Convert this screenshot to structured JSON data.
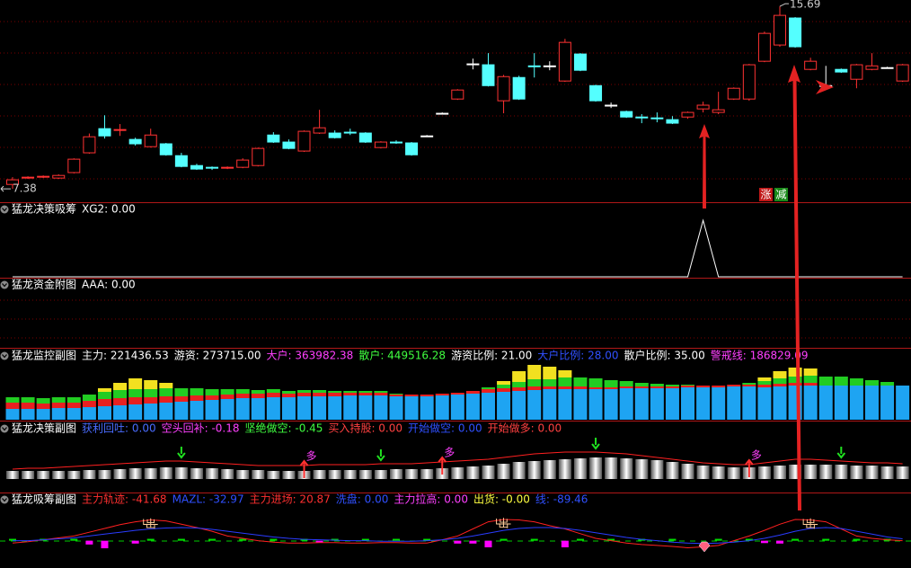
{
  "chart_data": [
    {
      "type": "candlestick",
      "ylim": [
        6.77,
        15.98
      ],
      "up_color": "#ff3232",
      "down_color": "#54ffff",
      "max_label": 15.69,
      "min_label": 7.38,
      "badges": [
        "涨",
        "减"
      ],
      "ohlc": [
        [
          7.58,
          7.91,
          7.38,
          7.79
        ],
        [
          7.87,
          7.95,
          7.83,
          7.91
        ],
        [
          7.91,
          7.99,
          7.87,
          7.95
        ],
        [
          7.87,
          8.04,
          7.83,
          7.99
        ],
        [
          8.12,
          8.77,
          8.08,
          8.73
        ],
        [
          9.02,
          9.9,
          8.98,
          9.75
        ],
        [
          10.12,
          10.73,
          9.67,
          9.79
        ],
        [
          10.04,
          10.33,
          9.79,
          10.08
        ],
        [
          9.63,
          9.71,
          9.35,
          9.43
        ],
        [
          9.3,
          10.12,
          9.26,
          9.83
        ],
        [
          9.43,
          9.47,
          8.89,
          8.93
        ],
        [
          8.89,
          9.02,
          8.36,
          8.4
        ],
        [
          8.44,
          8.52,
          8.24,
          8.28
        ],
        [
          8.36,
          8.4,
          8.24,
          8.32
        ],
        [
          8.32,
          8.4,
          8.28,
          8.36
        ],
        [
          8.36,
          8.77,
          8.32,
          8.69
        ],
        [
          8.44,
          9.26,
          8.4,
          9.22
        ],
        [
          9.83,
          9.96,
          9.47,
          9.51
        ],
        [
          9.51,
          9.63,
          9.18,
          9.22
        ],
        [
          9.1,
          10.04,
          9.06,
          10.0
        ],
        [
          9.92,
          10.98,
          9.88,
          10.16
        ],
        [
          9.92,
          10.04,
          9.67,
          9.71
        ],
        [
          9.96,
          10.12,
          9.83,
          9.92
        ],
        [
          9.92,
          9.96,
          9.47,
          9.51
        ],
        [
          9.26,
          9.55,
          9.22,
          9.51
        ],
        [
          9.51,
          9.59,
          9.43,
          9.47
        ],
        [
          9.47,
          9.51,
          8.89,
          8.93
        ],
        [
          9.79,
          9.83,
          9.75,
          9.79
        ],
        [
          10.82,
          10.86,
          10.78,
          10.82
        ],
        [
          11.47,
          11.92,
          11.43,
          11.88
        ],
        [
          13.07,
          13.31,
          12.82,
          13.07
        ],
        [
          13.03,
          13.56,
          12.04,
          12.08
        ],
        [
          11.39,
          12.57,
          10.82,
          12.49
        ],
        [
          12.45,
          12.53,
          11.43,
          11.47
        ],
        [
          12.98,
          13.56,
          12.45,
          12.94
        ],
        [
          12.98,
          13.19,
          12.78,
          12.98
        ],
        [
          12.29,
          14.21,
          12.25,
          14.05
        ],
        [
          13.52,
          13.56,
          12.74,
          12.78
        ],
        [
          12.08,
          12.12,
          11.35,
          11.39
        ],
        [
          11.19,
          11.31,
          11.06,
          11.19
        ],
        [
          10.9,
          10.94,
          10.61,
          10.65
        ],
        [
          10.65,
          10.78,
          10.37,
          10.61
        ],
        [
          10.61,
          10.86,
          10.41,
          10.57
        ],
        [
          10.53,
          10.69,
          10.33,
          10.37
        ],
        [
          10.65,
          10.9,
          10.57,
          10.86
        ],
        [
          11.02,
          11.35,
          10.86,
          11.19
        ],
        [
          10.86,
          11.8,
          10.78,
          10.98
        ],
        [
          11.47,
          12.0,
          11.43,
          11.96
        ],
        [
          11.47,
          13.07,
          11.39,
          13.03
        ],
        [
          13.19,
          14.54,
          13.15,
          14.46
        ],
        [
          13.93,
          15.69,
          13.85,
          15.28
        ],
        [
          15.16,
          15.2,
          13.81,
          13.85
        ],
        [
          12.82,
          13.35,
          12.78,
          13.19
        ],
        [
          12.08,
          12.98,
          11.96,
          12.08
        ],
        [
          12.82,
          12.86,
          12.66,
          12.7
        ],
        [
          12.37,
          13.07,
          11.96,
          13.03
        ],
        [
          12.82,
          13.56,
          12.78,
          12.98
        ],
        [
          12.9,
          12.94,
          12.86,
          12.9
        ],
        [
          12.29,
          13.07,
          12.25,
          13.03
        ]
      ]
    },
    {
      "type": "signal",
      "header": [
        {
          "text": "猛龙决策吸筹",
          "color": "#ffffff"
        },
        {
          "text": "XG2: 0.00",
          "color": "#ffffff"
        }
      ],
      "ylim": [
        0,
        1.05
      ],
      "color": "#ffffff",
      "values": [
        0,
        0,
        0,
        0,
        0,
        0,
        0,
        0,
        0,
        0,
        0,
        0,
        0,
        0,
        0,
        0,
        0,
        0,
        0,
        0,
        0,
        0,
        0,
        0,
        0,
        0,
        0,
        0,
        0,
        0,
        0,
        0,
        0,
        0,
        0,
        0,
        0,
        0,
        0,
        0,
        0,
        0,
        0,
        0,
        0,
        1,
        0,
        0,
        0,
        0,
        0,
        0,
        0,
        0,
        0,
        0,
        0,
        0,
        0
      ]
    },
    {
      "type": "blank",
      "header": [
        {
          "text": "猛龙资金附图",
          "color": "#ffffff"
        },
        {
          "text": "AAA: 0.00",
          "color": "#ffffff"
        }
      ]
    },
    {
      "type": "stacked-bar",
      "ylim": [
        0,
        62
      ],
      "header": [
        {
          "text": "猛龙监控副图",
          "color": "#ffffff"
        },
        {
          "text": "主力: 221436.53",
          "color": "#ffffff"
        },
        {
          "text": "游资: 273715.00",
          "color": "#ffffff"
        },
        {
          "text": "大户: 363982.38",
          "color": "#ff40ff"
        },
        {
          "text": "散户: 449516.28",
          "color": "#40ff40"
        },
        {
          "text": "游资比例: 21.00",
          "color": "#ffffff"
        },
        {
          "text": "大户比例: 28.00",
          "color": "#3050ff"
        },
        {
          "text": "散户比例: 35.00",
          "color": "#ffffff"
        },
        {
          "text": "警戒线: 186829.09",
          "color": "#ff40ff"
        }
      ],
      "series": [
        {
          "color": "#1ea4f2",
          "values": [
            12,
            12,
            12,
            13,
            13,
            14,
            15,
            16,
            17,
            18,
            19,
            20,
            21,
            22,
            23,
            24,
            24,
            25,
            25,
            26,
            26,
            26,
            27,
            27,
            27,
            26,
            26,
            26,
            27,
            28,
            29,
            30,
            31,
            32,
            33,
            34,
            34,
            34,
            34,
            34,
            35,
            35,
            35,
            35,
            36,
            36,
            36,
            37,
            37,
            36,
            37,
            38,
            38,
            38,
            38,
            38,
            38,
            38,
            38
          ]
        },
        {
          "color": "#e82020",
          "values": [
            7,
            7,
            6,
            6,
            6,
            7,
            8,
            8,
            8,
            7,
            7,
            6,
            6,
            5,
            5,
            5,
            5,
            5,
            4,
            4,
            4,
            4,
            3,
            3,
            3,
            2,
            2,
            2,
            2,
            2,
            3,
            4,
            4,
            4,
            4,
            3,
            3,
            3,
            2,
            2,
            2,
            2,
            2,
            2,
            2,
            2,
            2,
            2,
            2,
            3,
            3,
            3,
            3,
            0,
            0,
            0,
            0,
            0,
            0
          ]
        },
        {
          "color": "#22cc22",
          "values": [
            6,
            6,
            6,
            6,
            6,
            7,
            8,
            9,
            9,
            9,
            9,
            9,
            8,
            7,
            6,
            5,
            4,
            4,
            3,
            3,
            3,
            2,
            2,
            2,
            2,
            1,
            0,
            0,
            0,
            0,
            0,
            2,
            4,
            6,
            8,
            8,
            10,
            10,
            10,
            8,
            6,
            4,
            3,
            2,
            1,
            0,
            0,
            0,
            2,
            4,
            6,
            7,
            8,
            10,
            10,
            8,
            6,
            4,
            0
          ]
        },
        {
          "color": "#f2e020",
          "values": [
            0,
            0,
            0,
            0,
            0,
            0,
            4,
            8,
            12,
            10,
            6,
            0,
            0,
            0,
            0,
            0,
            0,
            0,
            0,
            0,
            0,
            0,
            0,
            0,
            0,
            0,
            0,
            0,
            0,
            0,
            0,
            0,
            4,
            12,
            16,
            14,
            8,
            0,
            0,
            0,
            0,
            0,
            0,
            0,
            0,
            0,
            0,
            0,
            0,
            4,
            8,
            10,
            8,
            0,
            0,
            0,
            0,
            0,
            0
          ]
        }
      ]
    },
    {
      "type": "decision",
      "ylim": [
        0,
        46
      ],
      "header": [
        {
          "text": "猛龙决策副图",
          "color": "#ffffff"
        },
        {
          "text": "获利回吐: 0.00",
          "color": "#4a6cff"
        },
        {
          "text": "空头回补: -0.18",
          "color": "#ff40ff"
        },
        {
          "text": "坚绝做空: -0.45",
          "color": "#40ff40"
        },
        {
          "text": "买入持股: 0.00",
          "color": "#ff4040"
        },
        {
          "text": "开始做空: 0.00",
          "color": "#3050ff"
        },
        {
          "text": "开始做多: 0.00",
          "color": "#ff4040"
        }
      ],
      "values": [
        9,
        9,
        9,
        9,
        9,
        10,
        10,
        11,
        12,
        12,
        13,
        13,
        12,
        12,
        11,
        10,
        10,
        9,
        9,
        9,
        10,
        10,
        10,
        10,
        10,
        11,
        11,
        11,
        12,
        13,
        14,
        15,
        17,
        19,
        20,
        21,
        22,
        23,
        24,
        24,
        23,
        22,
        21,
        19,
        17,
        15,
        14,
        13,
        13,
        14,
        15,
        16,
        16,
        16,
        16,
        15,
        15,
        14,
        14
      ],
      "line": {
        "color": "#ff2020",
        "values": [
          11,
          12,
          12,
          13,
          14,
          15,
          16,
          17,
          18,
          19,
          20,
          20,
          19,
          18,
          17,
          16,
          15,
          15,
          15,
          15,
          16,
          16,
          16,
          16,
          17,
          17,
          17,
          18,
          19,
          20,
          21,
          22,
          24,
          26,
          28,
          29,
          30,
          30,
          30,
          29,
          28,
          26,
          24,
          22,
          20,
          18,
          17,
          16,
          16,
          18,
          20,
          22,
          22,
          21,
          20,
          19,
          18,
          18,
          17
        ]
      },
      "down_arrows": [
        11,
        24,
        38,
        54
      ],
      "up_arrows": [
        19,
        28,
        48
      ],
      "up_label": "多"
    },
    {
      "type": "accumulation",
      "ylim": [
        -54,
        66
      ],
      "header": [
        {
          "text": "猛龙吸筹副图",
          "color": "#ffffff"
        },
        {
          "text": "主力轨迹: -41.68",
          "color": "#ff3030"
        },
        {
          "text": "MAZL: -32.97",
          "color": "#3050ff"
        },
        {
          "text": "主力进场: 20.87",
          "color": "#ff3030"
        },
        {
          "text": "洗盘: 0.00",
          "color": "#3050ff"
        },
        {
          "text": "主力拉高: 0.00",
          "color": "#ff40ff"
        },
        {
          "text": "出货: -0.00",
          "color": "#ffff40"
        },
        {
          "text": "线: -89.46",
          "color": "#3050ff"
        }
      ],
      "series": [
        {
          "color": "#ff2020",
          "values": [
            -5,
            -2,
            2,
            6,
            10,
            18,
            26,
            34,
            40,
            44,
            42,
            35,
            28,
            20,
            10,
            5,
            0,
            -3,
            -5,
            -5,
            -4,
            -4,
            -5,
            -5,
            -4,
            -4,
            -5,
            -5,
            2,
            10,
            25,
            40,
            45,
            44,
            40,
            32,
            25,
            15,
            5,
            0,
            -5,
            -8,
            -10,
            -12,
            -15,
            -13,
            -10,
            0,
            10,
            22,
            35,
            45,
            44,
            40,
            25,
            10,
            5,
            2,
            0
          ]
        },
        {
          "color": "#2a3cff",
          "values": [
            0,
            0,
            2,
            4,
            6,
            10,
            14,
            18,
            22,
            25,
            27,
            28,
            27,
            24,
            20,
            16,
            12,
            8,
            5,
            3,
            2,
            1,
            0,
            0,
            -1,
            -1,
            -1,
            0,
            2,
            5,
            10,
            16,
            22,
            26,
            28,
            28,
            26,
            22,
            17,
            12,
            7,
            3,
            0,
            -3,
            -5,
            -6,
            -5,
            -3,
            0,
            5,
            12,
            20,
            26,
            28,
            26,
            20,
            14,
            8,
            4
          ]
        }
      ],
      "bars": [
        4,
        0,
        4,
        0,
        4,
        -8,
        -16,
        0,
        -6,
        4,
        0,
        4,
        0,
        4,
        0,
        4,
        0,
        4,
        0,
        4,
        -4,
        4,
        0,
        4,
        0,
        4,
        0,
        4,
        0,
        -6,
        -6,
        -14,
        4,
        0,
        4,
        0,
        -14,
        4,
        0,
        4,
        0,
        4,
        0,
        4,
        0,
        0,
        4,
        0,
        4,
        -5,
        -6,
        4,
        0,
        4,
        0,
        4,
        0,
        4,
        0
      ],
      "bar_colors": [
        "#ff00ff",
        "#00dd00"
      ],
      "marks": [
        9,
        32,
        52
      ],
      "mark_label": "出"
    }
  ]
}
